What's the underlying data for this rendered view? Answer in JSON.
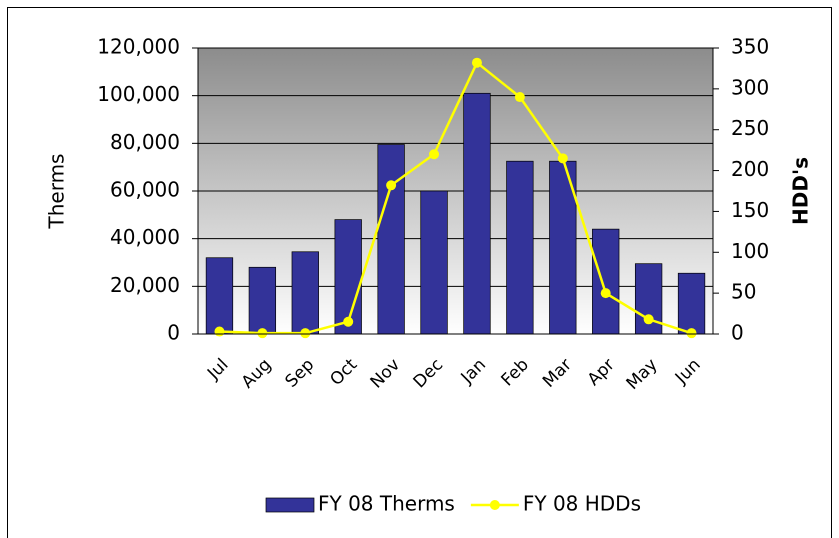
{
  "chart_data": {
    "type": "bar",
    "categories": [
      "Jul",
      "Aug",
      "Sep",
      "Oct",
      "Nov",
      "Dec",
      "Jan",
      "Feb",
      "Mar",
      "Apr",
      "May",
      "Jun"
    ],
    "series": [
      {
        "name": "FY 08 Therms",
        "type": "bar",
        "color": "#333399",
        "values": [
          32000,
          28000,
          34500,
          48000,
          79500,
          60000,
          101000,
          72500,
          72500,
          44000,
          29500,
          25500
        ]
      },
      {
        "name": "FY 08 HDDs",
        "type": "line",
        "axis": "y2",
        "color": "#ffff00",
        "values": [
          3,
          1,
          1,
          15,
          182,
          220,
          332,
          290,
          215,
          50,
          18,
          1
        ]
      }
    ],
    "y_label": "Therms",
    "y2_label": "HDD's",
    "ylim": [
      0,
      120000
    ],
    "yticks": [
      0,
      {
        "value": 20000,
        "label": "20,000"
      },
      {
        "value": 40000,
        "label": "40,000"
      },
      {
        "value": 60000,
        "label": "60,000"
      },
      {
        "value": 80000,
        "label": "80,000"
      },
      {
        "value": 100000,
        "label": "100,000"
      },
      {
        "value": 120000,
        "label": "120,000"
      }
    ],
    "y2lim": [
      0,
      350
    ],
    "y2ticks": [
      0,
      50,
      100,
      150,
      200,
      250,
      300,
      350
    ],
    "grid": true,
    "legend": "bottom"
  }
}
